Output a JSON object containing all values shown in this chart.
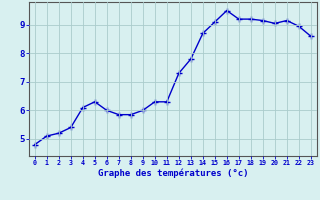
{
  "x": [
    0,
    1,
    2,
    3,
    4,
    5,
    6,
    7,
    8,
    9,
    10,
    11,
    12,
    13,
    14,
    15,
    16,
    17,
    18,
    19,
    20,
    21,
    22,
    23
  ],
  "y": [
    4.8,
    5.1,
    5.2,
    5.4,
    6.1,
    6.3,
    6.0,
    5.85,
    5.85,
    6.0,
    6.3,
    6.3,
    7.3,
    7.8,
    8.7,
    9.1,
    9.5,
    9.2,
    9.2,
    9.15,
    9.05,
    9.15,
    8.95,
    8.6
  ],
  "line_color": "#0000cc",
  "marker": "+",
  "marker_size": 4,
  "bg_color": "#d8f0f0",
  "grid_color": "#aacccc",
  "axis_color": "#0000cc",
  "tick_label_color": "#0000cc",
  "xlabel": "Graphe des températures (°c)",
  "xlabel_fontsize": 6.5,
  "ylabel_ticks": [
    5,
    6,
    7,
    8,
    9
  ],
  "xlim": [
    -0.5,
    23.5
  ],
  "ylim": [
    4.4,
    9.8
  ],
  "linewidth": 1.0
}
